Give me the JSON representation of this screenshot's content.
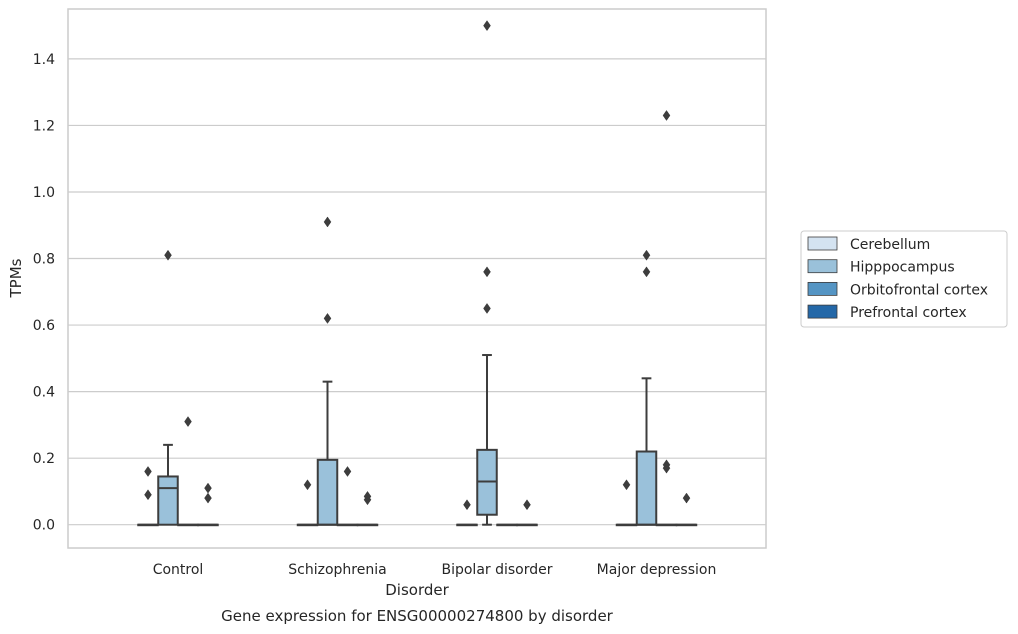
{
  "chart_data": {
    "type": "box",
    "title": "Gene expression for ENSG00000274800 by disorder",
    "xlabel": "Disorder",
    "ylabel": "TPMs",
    "ylim": [
      -0.07,
      1.55
    ],
    "yticks": [
      "0.0",
      "0.2",
      "0.4",
      "0.6",
      "0.8",
      "1.0",
      "1.2",
      "1.4"
    ],
    "grid": true,
    "legend_position": "right",
    "categories": [
      "Control",
      "Schizophrenia",
      "Bipolar disorder",
      "Major depression"
    ],
    "series": [
      {
        "name": "Cerebellum",
        "color": "#d4e3f1",
        "boxes": [
          {
            "whislo": 0,
            "q1": 0,
            "med": 0,
            "q3": 0,
            "whishi": 0,
            "fliers": [
              0.09,
              0.16
            ]
          },
          {
            "whislo": 0,
            "q1": 0,
            "med": 0,
            "q3": 0,
            "whishi": 0,
            "fliers": [
              0.12
            ]
          },
          {
            "whislo": 0,
            "q1": 0,
            "med": 0,
            "q3": 0,
            "whishi": 0,
            "fliers": [
              0.06
            ]
          },
          {
            "whislo": 0,
            "q1": 0,
            "med": 0,
            "q3": 0,
            "whishi": 0,
            "fliers": [
              0.12
            ]
          }
        ]
      },
      {
        "name": "Hipppocampus",
        "color": "#9ac1da",
        "boxes": [
          {
            "whislo": 0,
            "q1": 0,
            "med": 0.11,
            "q3": 0.145,
            "whishi": 0.24,
            "fliers": [
              0.81
            ]
          },
          {
            "whislo": 0,
            "q1": 0,
            "med": 0,
            "q3": 0.195,
            "whishi": 0.43,
            "fliers": [
              0.62,
              0.91
            ]
          },
          {
            "whislo": 0,
            "q1": 0.03,
            "med": 0.13,
            "q3": 0.225,
            "whishi": 0.51,
            "fliers": [
              0.65,
              0.76,
              1.5
            ]
          },
          {
            "whislo": 0,
            "q1": 0,
            "med": 0,
            "q3": 0.22,
            "whishi": 0.44,
            "fliers": [
              0.76,
              0.81
            ]
          }
        ]
      },
      {
        "name": "Orbitofrontal cortex",
        "color": "#5595c4",
        "boxes": [
          {
            "whislo": 0,
            "q1": 0,
            "med": 0,
            "q3": 0,
            "whishi": 0,
            "fliers": [
              0.31
            ]
          },
          {
            "whislo": 0,
            "q1": 0,
            "med": 0,
            "q3": 0,
            "whishi": 0,
            "fliers": [
              0.16
            ]
          },
          {
            "whislo": 0,
            "q1": 0,
            "med": 0,
            "q3": 0,
            "whishi": 0,
            "fliers": []
          },
          {
            "whislo": 0,
            "q1": 0,
            "med": 0,
            "q3": 0,
            "whishi": 0,
            "fliers": [
              0.17,
              0.18,
              1.23
            ]
          }
        ]
      },
      {
        "name": "Prefrontal cortex",
        "color": "#2468a8",
        "boxes": [
          {
            "whislo": 0,
            "q1": 0,
            "med": 0,
            "q3": 0,
            "whishi": 0,
            "fliers": [
              0.08,
              0.11
            ]
          },
          {
            "whislo": 0,
            "q1": 0,
            "med": 0,
            "q3": 0,
            "whishi": 0,
            "fliers": [
              0.075,
              0.085
            ]
          },
          {
            "whislo": 0,
            "q1": 0,
            "med": 0,
            "q3": 0,
            "whishi": 0,
            "fliers": [
              0.06
            ]
          },
          {
            "whislo": 0,
            "q1": 0,
            "med": 0,
            "q3": 0,
            "whishi": 0,
            "fliers": [
              0.08
            ]
          }
        ]
      }
    ],
    "colors": {
      "grid": "#cccccc",
      "frame": "#cccccc",
      "line": "#3d3d3d",
      "text": "#262626"
    }
  }
}
